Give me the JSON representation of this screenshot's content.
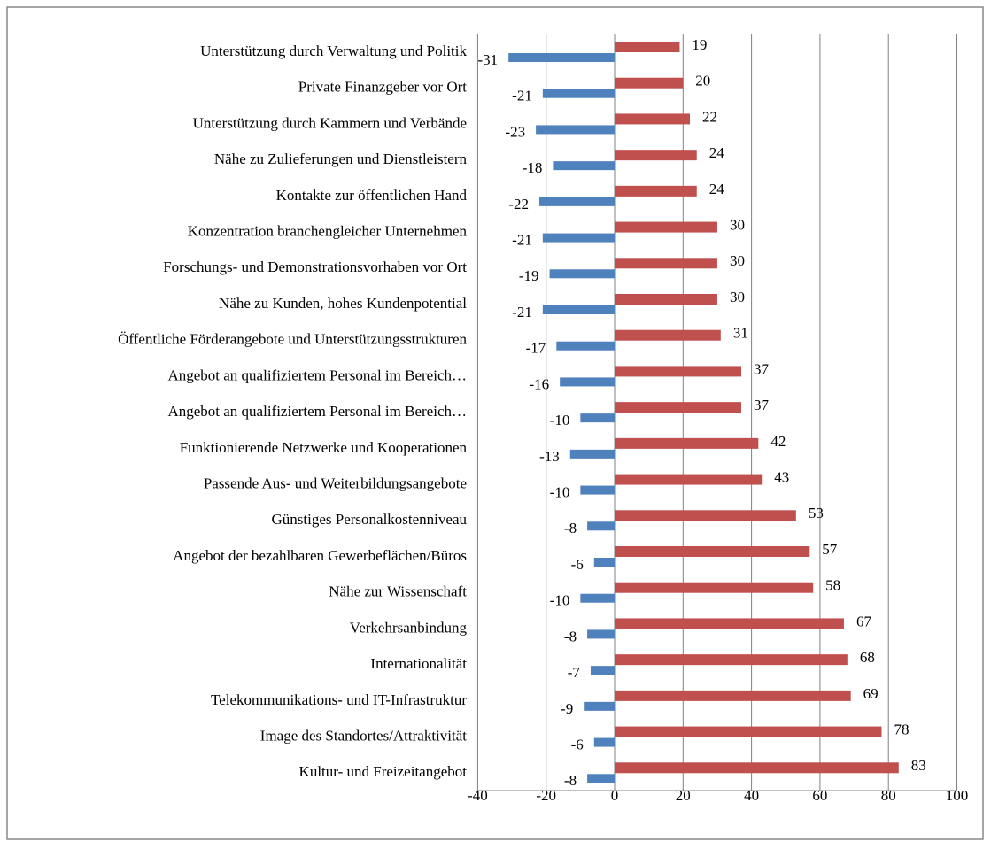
{
  "chart_data": {
    "type": "bar",
    "orientation": "horizontal",
    "categories": [
      "Unterstützung durch Verwaltung und Politik",
      "Private Finanzgeber vor Ort",
      "Unterstützung durch Kammern und Verbände",
      "Nähe zu Zulieferungen und Dienstleistern",
      "Kontakte zur öffentlichen Hand",
      "Konzentration branchengleicher Unternehmen",
      "Forschungs- und Demonstrationsvorhaben vor Ort",
      "Nähe zu Kunden, hohes Kundenpotential",
      "Öffentliche Förderangebote und Unterstützungsstrukturen",
      "Angebot an qualifiziertem Personal im Bereich…",
      "Angebot an qualifiziertem Personal im Bereich…",
      "Funktionierende Netzwerke und Kooperationen",
      "Passende Aus- und Weiterbildungsangebote",
      "Günstiges Personalkostenniveau",
      "Angebot der bezahlbaren Gewerbeflächen/Büros",
      "Nähe zur Wissenschaft",
      "Verkehrsanbindung",
      "Internationalität",
      "Telekommunikations- und IT-Infrastruktur",
      "Image des Standortes/Attraktivität",
      "Kultur- und Freizeitangebot"
    ],
    "series": [
      {
        "color": "#c0504d",
        "values": [
          19,
          20,
          22,
          24,
          24,
          30,
          30,
          30,
          31,
          37,
          37,
          42,
          43,
          53,
          57,
          58,
          67,
          68,
          69,
          78,
          83
        ]
      },
      {
        "color": "#4f81bd",
        "values": [
          -31,
          -21,
          -23,
          -18,
          -22,
          -21,
          -19,
          -21,
          -17,
          -16,
          -10,
          -13,
          -10,
          -8,
          -6,
          -10,
          -8,
          -7,
          -9,
          -6,
          -8
        ]
      }
    ],
    "xlim": [
      -40,
      100
    ],
    "xticks": [
      -40,
      -20,
      0,
      20,
      40,
      60,
      80,
      100
    ],
    "grid": true
  }
}
